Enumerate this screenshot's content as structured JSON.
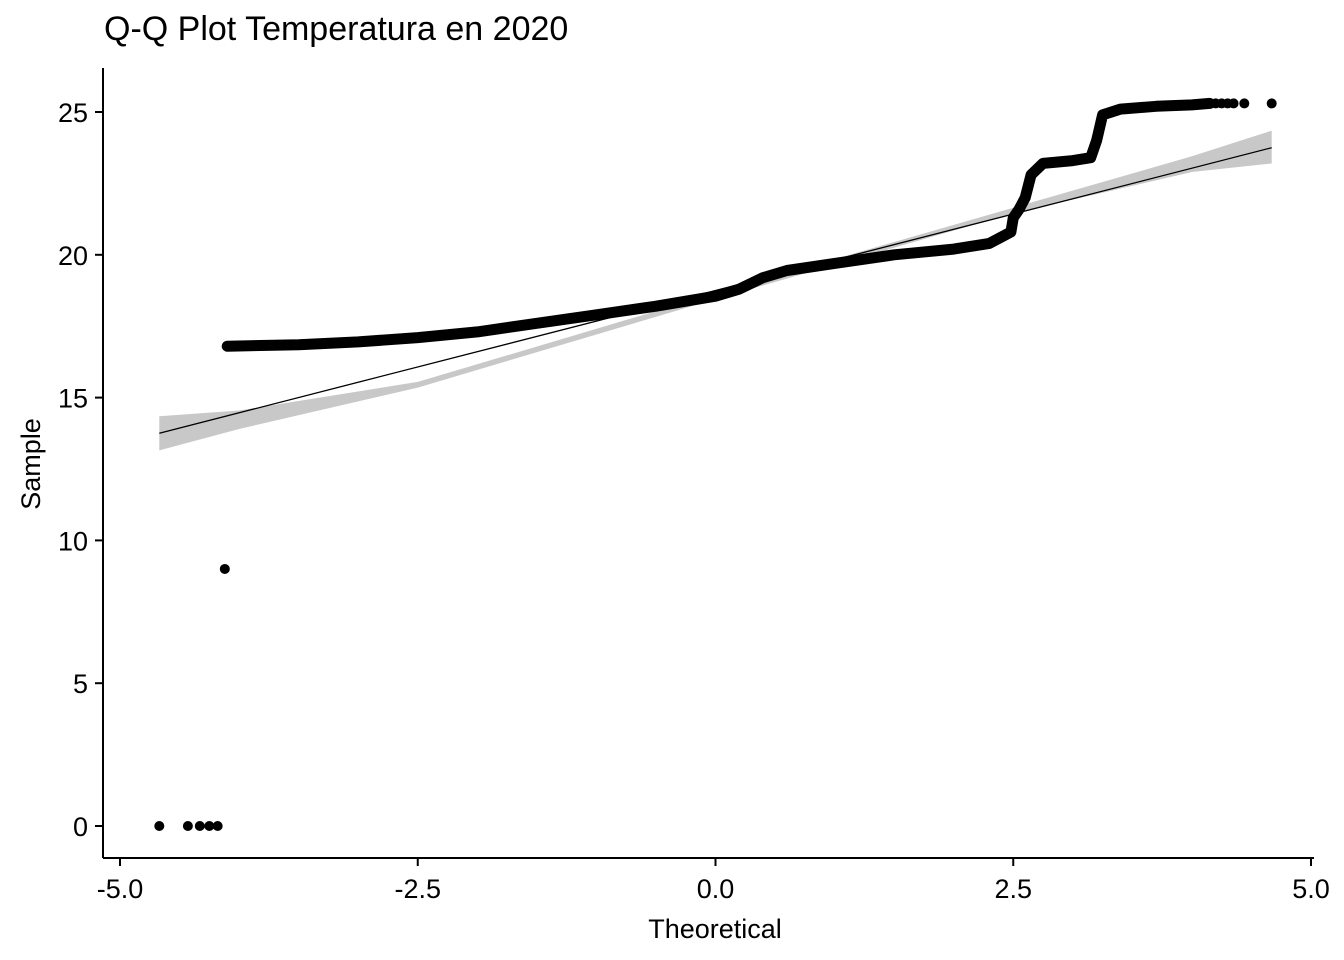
{
  "chart_data": {
    "type": "scatter",
    "title": "Q-Q Plot Temperatura en 2020",
    "xlabel": "Theoretical",
    "ylabel": "Sample",
    "xlim": [
      -5.0,
      5.0
    ],
    "ylim": [
      0,
      25
    ],
    "x_ticks": [
      -5.0,
      -2.5,
      0.0,
      2.5,
      5.0
    ],
    "x_tick_labels": [
      "-5.0",
      "-2.5",
      "0.0",
      "2.5",
      "5.0"
    ],
    "y_ticks": [
      0,
      5,
      10,
      15,
      20,
      25
    ],
    "y_tick_labels": [
      "0",
      "5",
      "10",
      "15",
      "20",
      "25"
    ],
    "grid": false,
    "series": [
      {
        "name": "sample quantiles",
        "kind": "points",
        "outliers": [
          {
            "x": -4.67,
            "y": 0.0
          },
          {
            "x": -4.43,
            "y": 0.0
          },
          {
            "x": -4.33,
            "y": 0.0
          },
          {
            "x": -4.25,
            "y": 0.0
          },
          {
            "x": -4.18,
            "y": 0.0
          },
          {
            "x": -4.12,
            "y": 9.0
          }
        ],
        "curve": [
          {
            "x": -4.1,
            "y": 16.8
          },
          {
            "x": -3.5,
            "y": 16.85
          },
          {
            "x": -3.0,
            "y": 16.95
          },
          {
            "x": -2.5,
            "y": 17.1
          },
          {
            "x": -2.0,
            "y": 17.3
          },
          {
            "x": -1.5,
            "y": 17.6
          },
          {
            "x": -1.0,
            "y": 17.9
          },
          {
            "x": -0.5,
            "y": 18.2
          },
          {
            "x": 0.0,
            "y": 18.55
          },
          {
            "x": 0.2,
            "y": 18.8
          },
          {
            "x": 0.4,
            "y": 19.2
          },
          {
            "x": 0.6,
            "y": 19.45
          },
          {
            "x": 1.0,
            "y": 19.7
          },
          {
            "x": 1.5,
            "y": 20.0
          },
          {
            "x": 2.0,
            "y": 20.2
          },
          {
            "x": 2.3,
            "y": 20.4
          },
          {
            "x": 2.48,
            "y": 20.8
          },
          {
            "x": 2.5,
            "y": 21.3
          },
          {
            "x": 2.55,
            "y": 21.6
          },
          {
            "x": 2.6,
            "y": 22.0
          },
          {
            "x": 2.65,
            "y": 22.8
          },
          {
            "x": 2.75,
            "y": 23.2
          },
          {
            "x": 3.0,
            "y": 23.3
          },
          {
            "x": 3.15,
            "y": 23.4
          },
          {
            "x": 3.2,
            "y": 24.0
          },
          {
            "x": 3.25,
            "y": 24.9
          },
          {
            "x": 3.4,
            "y": 25.1
          },
          {
            "x": 3.7,
            "y": 25.2
          },
          {
            "x": 4.0,
            "y": 25.25
          },
          {
            "x": 4.15,
            "y": 25.3
          }
        ],
        "upper_tail": [
          {
            "x": 4.2,
            "y": 25.3
          },
          {
            "x": 4.25,
            "y": 25.3
          },
          {
            "x": 4.3,
            "y": 25.3
          },
          {
            "x": 4.35,
            "y": 25.3
          },
          {
            "x": 4.44,
            "y": 25.3
          },
          {
            "x": 4.67,
            "y": 25.3
          }
        ]
      },
      {
        "name": "reference line",
        "kind": "line",
        "x": [
          -4.67,
          4.67
        ],
        "y": [
          13.75,
          23.75
        ]
      },
      {
        "name": "confidence band",
        "kind": "band",
        "x": [
          -4.67,
          -4.0,
          -2.5,
          0.0,
          2.5,
          4.0,
          4.67
        ],
        "lower": [
          13.15,
          13.9,
          15.35,
          18.45,
          21.45,
          22.9,
          23.2
        ],
        "upper": [
          14.35,
          14.55,
          15.55,
          18.65,
          21.65,
          23.45,
          24.35
        ]
      }
    ]
  }
}
